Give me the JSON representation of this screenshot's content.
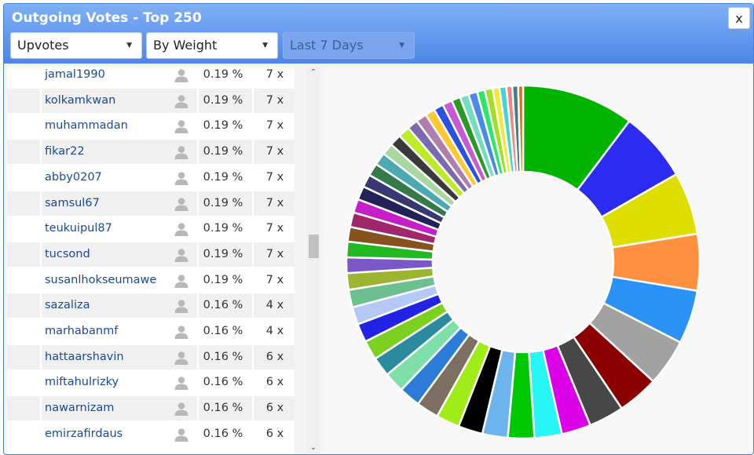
{
  "window": {
    "title": "Outgoing Votes - Top 250",
    "close_label": "x"
  },
  "filters": {
    "vote_type": "Upvotes",
    "sort": "By Weight",
    "period": "Last 7 Days"
  },
  "list": {
    "rows": [
      {
        "name": "jamal1990",
        "percent": "0.19 %",
        "count": "7 x"
      },
      {
        "name": "kolkamkwan",
        "percent": "0.19 %",
        "count": "7 x"
      },
      {
        "name": "muhammadan",
        "percent": "0.19 %",
        "count": "7 x"
      },
      {
        "name": "fikar22",
        "percent": "0.19 %",
        "count": "7 x"
      },
      {
        "name": "abby0207",
        "percent": "0.19 %",
        "count": "7 x"
      },
      {
        "name": "samsul67",
        "percent": "0.19 %",
        "count": "7 x"
      },
      {
        "name": "teukuipul87",
        "percent": "0.19 %",
        "count": "7 x"
      },
      {
        "name": "tucsond",
        "percent": "0.19 %",
        "count": "7 x"
      },
      {
        "name": "susanlhokseumawe",
        "percent": "0.19 %",
        "count": "7 x"
      },
      {
        "name": "sazaliza",
        "percent": "0.16 %",
        "count": "4 x"
      },
      {
        "name": "marhabanmf",
        "percent": "0.16 %",
        "count": "4 x"
      },
      {
        "name": "hattaarshavin",
        "percent": "0.16 %",
        "count": "6 x"
      },
      {
        "name": "miftahulrizky",
        "percent": "0.16 %",
        "count": "6 x"
      },
      {
        "name": "nawarnizam",
        "percent": "0.16 %",
        "count": "6 x"
      },
      {
        "name": "emirzafirdaus",
        "percent": "0.16 %",
        "count": "6 x"
      }
    ]
  },
  "scrollbar": {
    "up_glyph": "⌃",
    "down_glyph": "⌄"
  },
  "chart_data": {
    "type": "pie",
    "donut": true,
    "title": "",
    "slices": [
      {
        "value": 11.5,
        "color": "#00b400"
      },
      {
        "value": 7.2,
        "color": "#2b2bf2"
      },
      {
        "value": 6.4,
        "color": "#dede00"
      },
      {
        "value": 5.8,
        "color": "#ff9040"
      },
      {
        "value": 5.5,
        "color": "#2a92f5"
      },
      {
        "value": 4.8,
        "color": "#a2a2a2"
      },
      {
        "value": 4.2,
        "color": "#8b0000"
      },
      {
        "value": 3.6,
        "color": "#474747"
      },
      {
        "value": 3.0,
        "color": "#dc00e8"
      },
      {
        "value": 2.8,
        "color": "#28f5f5"
      },
      {
        "value": 2.7,
        "color": "#00c800"
      },
      {
        "value": 2.6,
        "color": "#6cb4ee"
      },
      {
        "value": 2.5,
        "color": "#000000"
      },
      {
        "value": 2.4,
        "color": "#a0ec18"
      },
      {
        "value": 2.3,
        "color": "#7d7062"
      },
      {
        "value": 2.2,
        "color": "#2b7cd8"
      },
      {
        "value": 2.1,
        "color": "#7ee0a8"
      },
      {
        "value": 2.0,
        "color": "#2b8a9e"
      },
      {
        "value": 2.0,
        "color": "#7cd020"
      },
      {
        "value": 1.9,
        "color": "#2323e6"
      },
      {
        "value": 1.8,
        "color": "#b3c8f5"
      },
      {
        "value": 1.8,
        "color": "#6cc090"
      },
      {
        "value": 1.7,
        "color": "#9cb430"
      },
      {
        "value": 1.6,
        "color": "#7a58c8"
      },
      {
        "value": 1.6,
        "color": "#22b822"
      },
      {
        "value": 1.5,
        "color": "#86521e"
      },
      {
        "value": 1.5,
        "color": "#a0286a"
      },
      {
        "value": 1.4,
        "color": "#c81ec8"
      },
      {
        "value": 1.4,
        "color": "#222258"
      },
      {
        "value": 1.3,
        "color": "#383874"
      },
      {
        "value": 1.3,
        "color": "#347a4a"
      },
      {
        "value": 1.3,
        "color": "#4aaab0"
      },
      {
        "value": 1.2,
        "color": "#a8d8a0"
      },
      {
        "value": 1.2,
        "color": "#3a3a3a"
      },
      {
        "value": 1.2,
        "color": "#bcec28"
      },
      {
        "value": 1.1,
        "color": "#7c6aae"
      },
      {
        "value": 1.1,
        "color": "#b07eae"
      },
      {
        "value": 1.0,
        "color": "#ffc830"
      },
      {
        "value": 1.0,
        "color": "#2a52e0"
      },
      {
        "value": 1.0,
        "color": "#c858d8"
      },
      {
        "value": 0.9,
        "color": "#2a9a22"
      },
      {
        "value": 0.9,
        "color": "#74dcc2"
      },
      {
        "value": 0.9,
        "color": "#4a8ae8"
      },
      {
        "value": 0.8,
        "color": "#2ce66a"
      },
      {
        "value": 0.8,
        "color": "#a0e020"
      },
      {
        "value": 0.7,
        "color": "#f2ea30"
      },
      {
        "value": 0.7,
        "color": "#40d4d4"
      },
      {
        "value": 0.6,
        "color": "#ff8080"
      },
      {
        "value": 0.6,
        "color": "#448080"
      },
      {
        "value": 0.5,
        "color": "#e06a1a"
      }
    ]
  }
}
